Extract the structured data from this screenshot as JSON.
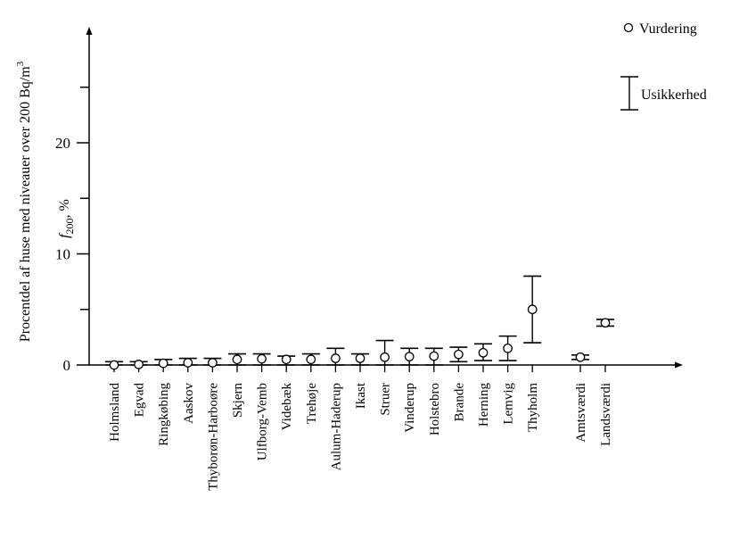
{
  "chart_data": {
    "type": "scatter",
    "ylabel_main": "Procentdel af huse med niveauer over 200 Bq/m",
    "ylabel_main_sup": "3",
    "ylabel_symbol": "f",
    "ylabel_symbol_sub": "200",
    "ylabel_unit": ", %",
    "ylim": [
      0,
      30
    ],
    "yticks": [
      0,
      10,
      20
    ],
    "yticks_minor": [
      5,
      15,
      25
    ],
    "grid": false,
    "legend": {
      "placement": "top-right",
      "point_label": "Vurdering",
      "errorbar_label": "Usikkerhed"
    },
    "categories": [
      "Holmsland",
      "Egvad",
      "Ringkøbing",
      "Aaskov",
      "Thyborøn-Harboøre",
      "Skjern",
      "Ulfborg-Vemb",
      "Videbæk",
      "Trehøje",
      "Aulum-Haderup",
      "Ikast",
      "Struer",
      "Vinderup",
      "Holstebro",
      "Brande",
      "Herning",
      "Lemvig",
      "Thyholm",
      "Amtsværdi",
      "Landsværdi"
    ],
    "values": [
      0.0,
      0.05,
      0.15,
      0.2,
      0.2,
      0.5,
      0.55,
      0.5,
      0.5,
      0.6,
      0.6,
      0.7,
      0.75,
      0.8,
      0.95,
      1.1,
      1.5,
      5.0,
      0.7,
      3.8
    ],
    "lower": [
      0.0,
      0.0,
      0.0,
      0.0,
      0.0,
      0.0,
      0.0,
      0.0,
      0.0,
      0.0,
      0.0,
      0.0,
      0.0,
      0.0,
      0.3,
      0.4,
      0.4,
      2.0,
      0.5,
      3.5
    ],
    "upper": [
      0.3,
      0.3,
      0.5,
      0.6,
      0.6,
      1.0,
      1.0,
      0.8,
      1.0,
      1.5,
      1.0,
      2.2,
      1.5,
      1.5,
      1.6,
      1.9,
      2.6,
      8.0,
      0.9,
      4.1
    ]
  }
}
